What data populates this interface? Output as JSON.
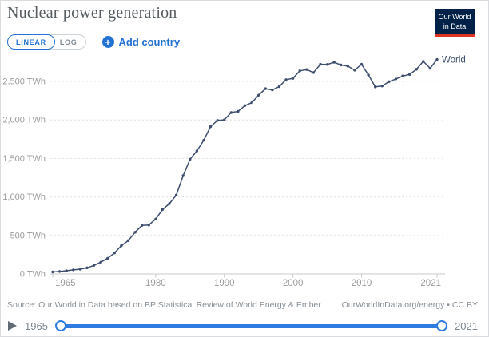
{
  "header": {
    "title": "Nuclear power generation",
    "logo": {
      "line1": "Our World",
      "line2": "in Data"
    }
  },
  "controls": {
    "scale_toggle": {
      "options": [
        "LINEAR",
        "LOG"
      ],
      "selected": "LINEAR"
    },
    "add_country": {
      "label": "Add country",
      "plus": "+"
    }
  },
  "chart_data": {
    "type": "line",
    "title": "Nuclear power generation",
    "unit": "TWh",
    "xlim": [
      1965,
      2021
    ],
    "ylim": [
      0,
      2900
    ],
    "grid": "horizontal-dashed",
    "legend_position": "end-of-line",
    "line_color": "#3d4e6e",
    "yticks": [
      {
        "value": 0,
        "label": "0 TWh"
      },
      {
        "value": 500,
        "label": "500 TWh"
      },
      {
        "value": 1000,
        "label": "1,000 TWh"
      },
      {
        "value": 1500,
        "label": "1,500 TWh"
      },
      {
        "value": 2000,
        "label": "2,000 TWh"
      },
      {
        "value": 2500,
        "label": "2,500 TWh"
      }
    ],
    "xticks": [
      {
        "value": 1965,
        "label": "1965"
      },
      {
        "value": 1980,
        "label": "1980"
      },
      {
        "value": 1990,
        "label": "1990"
      },
      {
        "value": 2000,
        "label": "2000"
      },
      {
        "value": 2010,
        "label": "2010"
      },
      {
        "value": 2021,
        "label": "2021"
      }
    ],
    "series": [
      {
        "name": "World",
        "years": [
          1965,
          1966,
          1967,
          1968,
          1969,
          1970,
          1971,
          1972,
          1973,
          1974,
          1975,
          1976,
          1977,
          1978,
          1979,
          1980,
          1981,
          1982,
          1983,
          1984,
          1985,
          1986,
          1987,
          1988,
          1989,
          1990,
          1991,
          1992,
          1993,
          1994,
          1995,
          1996,
          1997,
          1998,
          1999,
          2000,
          2001,
          2002,
          2003,
          2004,
          2005,
          2006,
          2007,
          2008,
          2009,
          2010,
          2011,
          2012,
          2013,
          2014,
          2015,
          2016,
          2017,
          2018,
          2019,
          2020,
          2021
        ],
        "values": [
          26,
          32,
          42,
          53,
          62,
          79,
          111,
          152,
          203,
          272,
          367,
          433,
          541,
          630,
          636,
          713,
          836,
          913,
          1024,
          1276,
          1489,
          1597,
          1736,
          1914,
          1994,
          2001,
          2096,
          2111,
          2186,
          2224,
          2322,
          2406,
          2390,
          2432,
          2523,
          2540,
          2637,
          2654,
          2615,
          2722,
          2720,
          2748,
          2713,
          2698,
          2646,
          2722,
          2584,
          2429,
          2441,
          2497,
          2532,
          2570,
          2590,
          2657,
          2760,
          2670,
          2785
        ]
      }
    ]
  },
  "footer": {
    "source": "Source: Our World in Data based on BP Statistical Review of World Energy & Ember",
    "license": "OurWorldInData.org/energy • CC BY"
  },
  "timeline": {
    "start_label": "1965",
    "end_label": "2021"
  },
  "colors": {
    "accent_blue": "#2271d3",
    "slider_blue": "#2e7ce0",
    "line_navy": "#3d4e6e",
    "logo_navy": "#002147",
    "logo_red": "#dc3421",
    "axis_text": "#9b9b9b",
    "gridline": "#e0e0e0"
  }
}
